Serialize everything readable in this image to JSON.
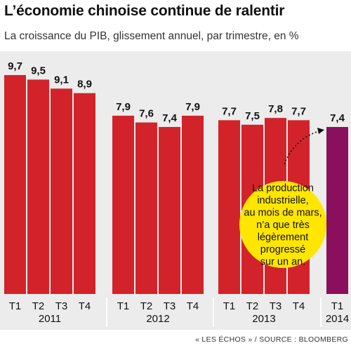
{
  "title": "L’économie chinoise continue de ralentir",
  "subtitle": "La croissance du PIB, glissement annuel, par trimestre, en %",
  "source": "« LES ÉCHOS » / SOURCE : BLOOMBERG",
  "colors": {
    "bar": "#d3232a",
    "highlight": "#8a0f5c",
    "callout": "#ffe600",
    "background": "#ececec"
  },
  "chart_data": {
    "type": "bar",
    "groups": [
      {
        "year": "2011",
        "quarters": [
          "T1",
          "T2",
          "T3",
          "T4"
        ],
        "values": [
          9.7,
          9.5,
          9.1,
          8.9
        ],
        "labels": [
          "9,7",
          "9,5",
          "9,1",
          "8,9"
        ]
      },
      {
        "year": "2012",
        "quarters": [
          "T1",
          "T2",
          "T3",
          "T4"
        ],
        "values": [
          7.9,
          7.6,
          7.4,
          7.9
        ],
        "labels": [
          "7,9",
          "7,6",
          "7,4",
          "7,9"
        ]
      },
      {
        "year": "2013",
        "quarters": [
          "T1",
          "T2",
          "T3",
          "T4"
        ],
        "values": [
          7.7,
          7.5,
          7.8,
          7.7
        ],
        "labels": [
          "7,7",
          "7,5",
          "7,8",
          "7,7"
        ]
      },
      {
        "year": "2014",
        "quarters": [
          "T1"
        ],
        "values": [
          7.4
        ],
        "labels": [
          "7,4"
        ],
        "highlight": true
      }
    ],
    "ylim": [
      0,
      10
    ],
    "grid": false,
    "annotation": {
      "lines": [
        "La production",
        "industrielle,",
        "au mois de mars,",
        "n’a que très",
        "légèrement",
        "progressé",
        "sur un an."
      ]
    }
  }
}
